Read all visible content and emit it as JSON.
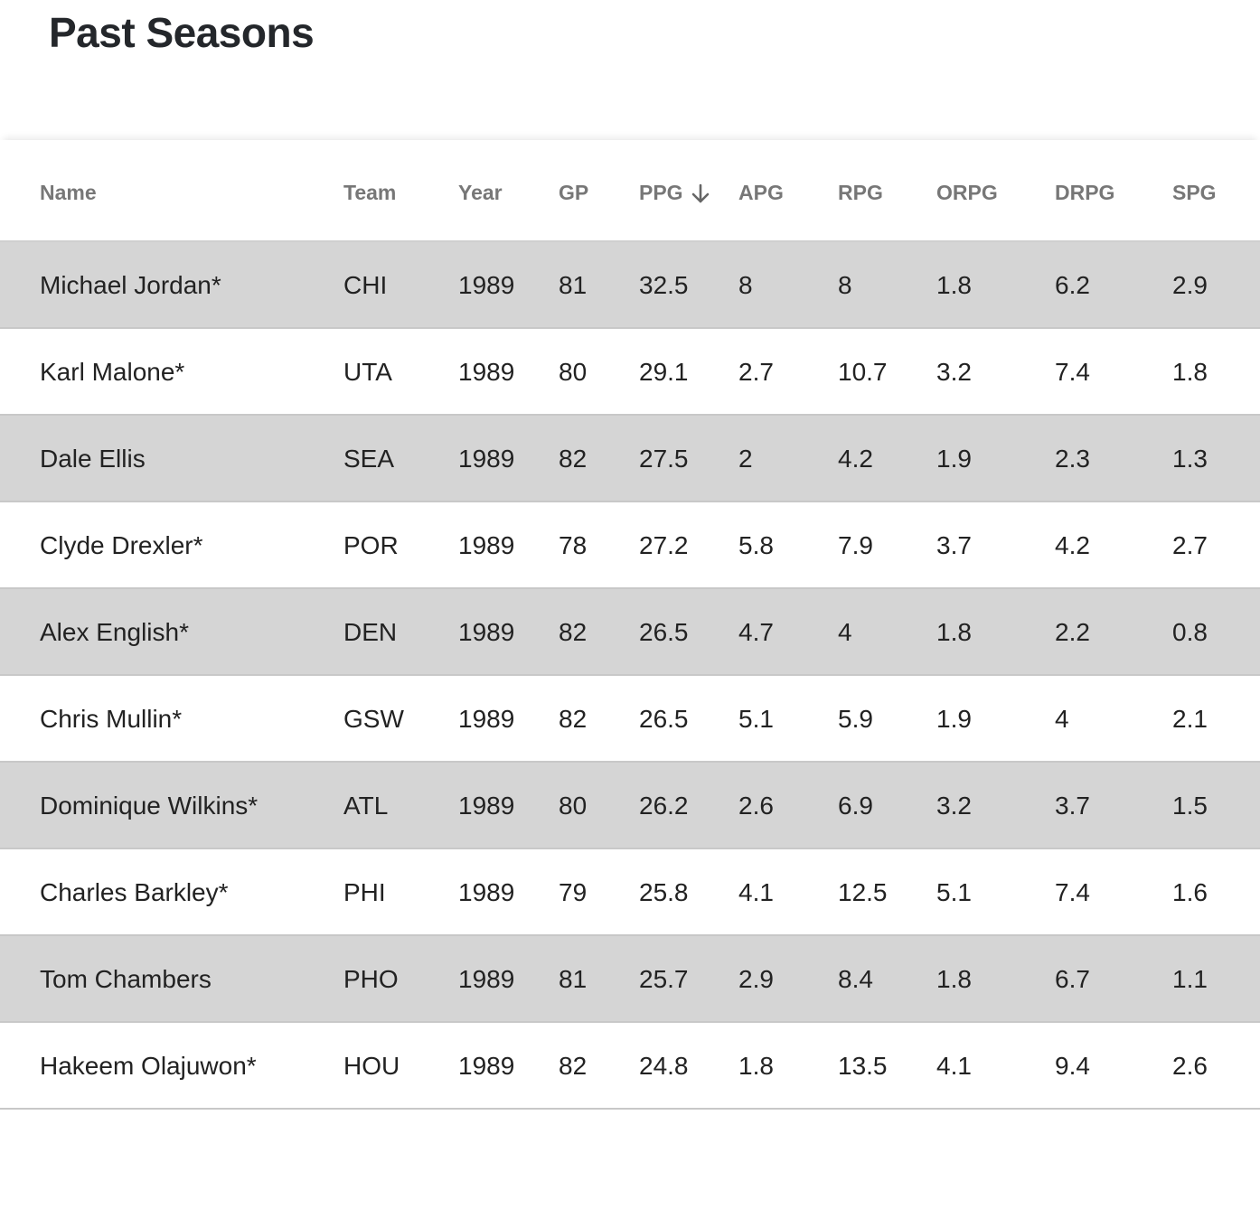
{
  "page": {
    "title": "Past Seasons"
  },
  "table": {
    "columns": [
      "Name",
      "Team",
      "Year",
      "GP",
      "PPG",
      "APG",
      "RPG",
      "ORPG",
      "DRPG",
      "SPG"
    ],
    "sorted_column": "PPG",
    "sort_direction": "descending",
    "sort_icon": "arrow-down-icon",
    "rows": [
      [
        "Michael Jordan*",
        "CHI",
        "1989",
        "81",
        "32.5",
        "8",
        "8",
        "1.8",
        "6.2",
        "2.9"
      ],
      [
        "Karl Malone*",
        "UTA",
        "1989",
        "80",
        "29.1",
        "2.7",
        "10.7",
        "3.2",
        "7.4",
        "1.8"
      ],
      [
        "Dale Ellis",
        "SEA",
        "1989",
        "82",
        "27.5",
        "2",
        "4.2",
        "1.9",
        "2.3",
        "1.3"
      ],
      [
        "Clyde Drexler*",
        "POR",
        "1989",
        "78",
        "27.2",
        "5.8",
        "7.9",
        "3.7",
        "4.2",
        "2.7"
      ],
      [
        "Alex English*",
        "DEN",
        "1989",
        "82",
        "26.5",
        "4.7",
        "4",
        "1.8",
        "2.2",
        "0.8"
      ],
      [
        "Chris Mullin*",
        "GSW",
        "1989",
        "82",
        "26.5",
        "5.1",
        "5.9",
        "1.9",
        "4",
        "2.1"
      ],
      [
        "Dominique Wilkins*",
        "ATL",
        "1989",
        "80",
        "26.2",
        "2.6",
        "6.9",
        "3.2",
        "3.7",
        "1.5"
      ],
      [
        "Charles Barkley*",
        "PHI",
        "1989",
        "79",
        "25.8",
        "4.1",
        "12.5",
        "5.1",
        "7.4",
        "1.6"
      ],
      [
        "Tom Chambers",
        "PHO",
        "1989",
        "81",
        "25.7",
        "2.9",
        "8.4",
        "1.8",
        "6.7",
        "1.1"
      ],
      [
        "Hakeem Olajuwon*",
        "HOU",
        "1989",
        "82",
        "24.8",
        "1.8",
        "13.5",
        "4.1",
        "9.4",
        "2.6"
      ]
    ]
  },
  "colors": {
    "shaded_row": "#d5d5d5",
    "plain_row": "#ffffff",
    "header_text": "#777777",
    "body_text": "#222222",
    "title_text": "#24272b"
  }
}
